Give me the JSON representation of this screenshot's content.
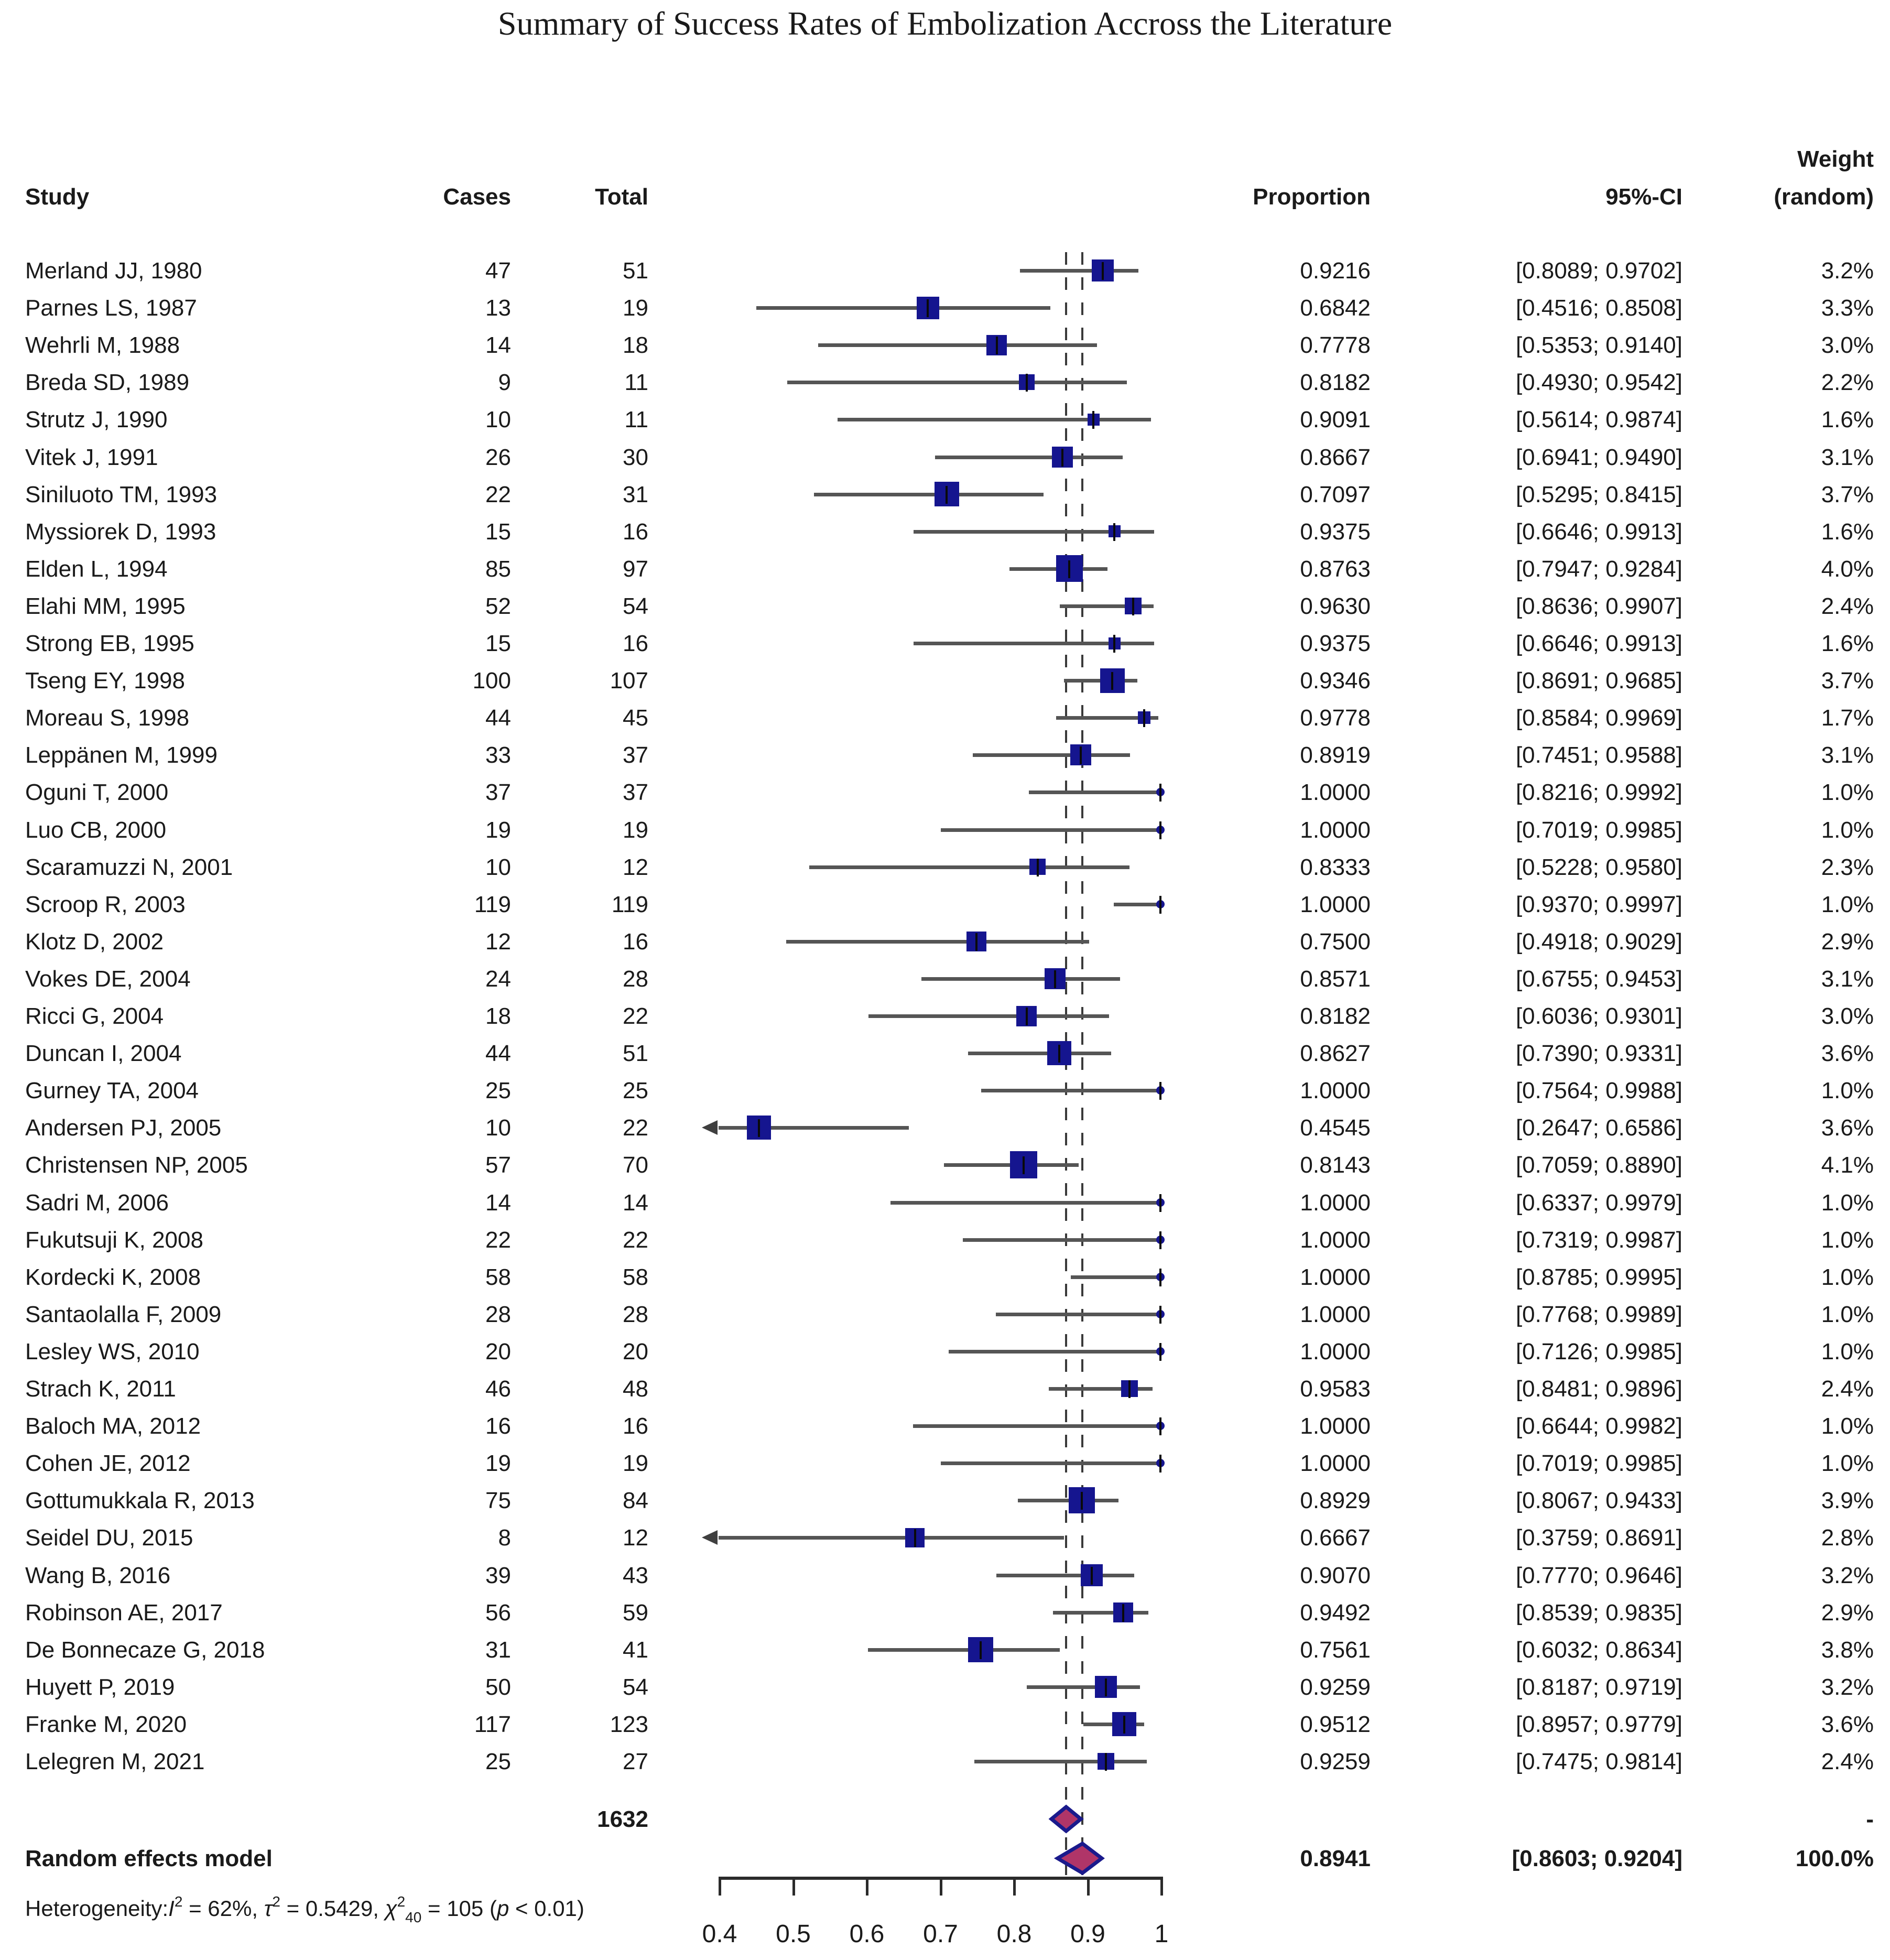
{
  "title": "Summary of Success Rates of Embolization Accross the Literature",
  "header": {
    "study": "Study",
    "cases": "Cases",
    "total": "Total",
    "proportion": "Proportion",
    "ci": "95%-CI",
    "weight_line1": "Weight",
    "weight_line2": "(random)"
  },
  "colors": {
    "square": "#15158f",
    "diamond_fill": "#b03568",
    "diamond_stroke": "#1a1a8c",
    "ci_line": "#555555",
    "dashed_line": "#3a3a3a",
    "axis": "#2b2b2b",
    "text": "#1a1a1a"
  },
  "chart_data": {
    "type": "forest",
    "xlim": [
      0.4,
      1.0
    ],
    "axis_ticks": [
      {
        "v": 0.4,
        "label": "0.4"
      },
      {
        "v": 0.5,
        "label": "0.5"
      },
      {
        "v": 0.6,
        "label": "0.6"
      },
      {
        "v": 0.7,
        "label": "0.7"
      },
      {
        "v": 0.8,
        "label": "0.8"
      },
      {
        "v": 0.9,
        "label": "0.9"
      },
      {
        "v": 1.0,
        "label": "1"
      }
    ],
    "dashed_lines": [
      0.872,
      0.8941
    ],
    "rows": [
      {
        "study": "Merland JJ, 1980",
        "cases": 47,
        "total": 51,
        "proportion": 0.9216,
        "ci_low": 0.8089,
        "ci_high": 0.9702,
        "weight": 3.2
      },
      {
        "study": "Parnes LS, 1987",
        "cases": 13,
        "total": 19,
        "proportion": 0.6842,
        "ci_low": 0.4516,
        "ci_high": 0.8508,
        "weight": 3.3
      },
      {
        "study": "Wehrli M, 1988",
        "cases": 14,
        "total": 18,
        "proportion": 0.7778,
        "ci_low": 0.5353,
        "ci_high": 0.914,
        "weight": 3.0
      },
      {
        "study": "Breda SD, 1989",
        "cases": 9,
        "total": 11,
        "proportion": 0.8182,
        "ci_low": 0.493,
        "ci_high": 0.9542,
        "weight": 2.2
      },
      {
        "study": "Strutz J, 1990",
        "cases": 10,
        "total": 11,
        "proportion": 0.9091,
        "ci_low": 0.5614,
        "ci_high": 0.9874,
        "weight": 1.6
      },
      {
        "study": "Vitek J, 1991",
        "cases": 26,
        "total": 30,
        "proportion": 0.8667,
        "ci_low": 0.6941,
        "ci_high": 0.949,
        "weight": 3.1
      },
      {
        "study": "Siniluoto TM, 1993",
        "cases": 22,
        "total": 31,
        "proportion": 0.7097,
        "ci_low": 0.5295,
        "ci_high": 0.8415,
        "weight": 3.7
      },
      {
        "study": "Myssiorek D, 1993",
        "cases": 15,
        "total": 16,
        "proportion": 0.9375,
        "ci_low": 0.6646,
        "ci_high": 0.9913,
        "weight": 1.6
      },
      {
        "study": "Elden L, 1994",
        "cases": 85,
        "total": 97,
        "proportion": 0.8763,
        "ci_low": 0.7947,
        "ci_high": 0.9284,
        "weight": 4.0
      },
      {
        "study": "Elahi MM, 1995",
        "cases": 52,
        "total": 54,
        "proportion": 0.963,
        "ci_low": 0.8636,
        "ci_high": 0.9907,
        "weight": 2.4
      },
      {
        "study": "Strong EB, 1995",
        "cases": 15,
        "total": 16,
        "proportion": 0.9375,
        "ci_low": 0.6646,
        "ci_high": 0.9913,
        "weight": 1.6
      },
      {
        "study": "Tseng EY, 1998",
        "cases": 100,
        "total": 107,
        "proportion": 0.9346,
        "ci_low": 0.8691,
        "ci_high": 0.9685,
        "weight": 3.7
      },
      {
        "study": "Moreau S, 1998",
        "cases": 44,
        "total": 45,
        "proportion": 0.9778,
        "ci_low": 0.8584,
        "ci_high": 0.9969,
        "weight": 1.7
      },
      {
        "study": "Leppänen M, 1999",
        "cases": 33,
        "total": 37,
        "proportion": 0.8919,
        "ci_low": 0.7451,
        "ci_high": 0.9588,
        "weight": 3.1
      },
      {
        "study": "Oguni T, 2000",
        "cases": 37,
        "total": 37,
        "proportion": 1.0,
        "ci_low": 0.8216,
        "ci_high": 0.9992,
        "weight": 1.0
      },
      {
        "study": "Luo CB, 2000",
        "cases": 19,
        "total": 19,
        "proportion": 1.0,
        "ci_low": 0.7019,
        "ci_high": 0.9985,
        "weight": 1.0
      },
      {
        "study": "Scaramuzzi N, 2001",
        "cases": 10,
        "total": 12,
        "proportion": 0.8333,
        "ci_low": 0.5228,
        "ci_high": 0.958,
        "weight": 2.3
      },
      {
        "study": "Scroop R, 2003",
        "cases": 119,
        "total": 119,
        "proportion": 1.0,
        "ci_low": 0.937,
        "ci_high": 0.9997,
        "weight": 1.0
      },
      {
        "study": "Klotz D, 2002",
        "cases": 12,
        "total": 16,
        "proportion": 0.75,
        "ci_low": 0.4918,
        "ci_high": 0.9029,
        "weight": 2.9
      },
      {
        "study": "Vokes DE, 2004",
        "cases": 24,
        "total": 28,
        "proportion": 0.8571,
        "ci_low": 0.6755,
        "ci_high": 0.9453,
        "weight": 3.1
      },
      {
        "study": "Ricci G, 2004",
        "cases": 18,
        "total": 22,
        "proportion": 0.8182,
        "ci_low": 0.6036,
        "ci_high": 0.9301,
        "weight": 3.0
      },
      {
        "study": "Duncan I, 2004",
        "cases": 44,
        "total": 51,
        "proportion": 0.8627,
        "ci_low": 0.739,
        "ci_high": 0.9331,
        "weight": 3.6
      },
      {
        "study": "Gurney TA, 2004",
        "cases": 25,
        "total": 25,
        "proportion": 1.0,
        "ci_low": 0.7564,
        "ci_high": 0.9988,
        "weight": 1.0
      },
      {
        "study": "Andersen PJ, 2005",
        "cases": 10,
        "total": 22,
        "proportion": 0.4545,
        "ci_low": 0.2647,
        "ci_high": 0.6586,
        "weight": 3.6
      },
      {
        "study": "Christensen NP, 2005",
        "cases": 57,
        "total": 70,
        "proportion": 0.8143,
        "ci_low": 0.7059,
        "ci_high": 0.889,
        "weight": 4.1
      },
      {
        "study": "Sadri M, 2006",
        "cases": 14,
        "total": 14,
        "proportion": 1.0,
        "ci_low": 0.6337,
        "ci_high": 0.9979,
        "weight": 1.0
      },
      {
        "study": "Fukutsuji K, 2008",
        "cases": 22,
        "total": 22,
        "proportion": 1.0,
        "ci_low": 0.7319,
        "ci_high": 0.9987,
        "weight": 1.0
      },
      {
        "study": "Kordecki K, 2008",
        "cases": 58,
        "total": 58,
        "proportion": 1.0,
        "ci_low": 0.8785,
        "ci_high": 0.9995,
        "weight": 1.0
      },
      {
        "study": "Santaolalla F, 2009",
        "cases": 28,
        "total": 28,
        "proportion": 1.0,
        "ci_low": 0.7768,
        "ci_high": 0.9989,
        "weight": 1.0
      },
      {
        "study": "Lesley WS, 2010",
        "cases": 20,
        "total": 20,
        "proportion": 1.0,
        "ci_low": 0.7126,
        "ci_high": 0.9985,
        "weight": 1.0
      },
      {
        "study": "Strach K, 2011",
        "cases": 46,
        "total": 48,
        "proportion": 0.9583,
        "ci_low": 0.8481,
        "ci_high": 0.9896,
        "weight": 2.4
      },
      {
        "study": "Baloch MA, 2012",
        "cases": 16,
        "total": 16,
        "proportion": 1.0,
        "ci_low": 0.6644,
        "ci_high": 0.9982,
        "weight": 1.0
      },
      {
        "study": "Cohen JE, 2012",
        "cases": 19,
        "total": 19,
        "proportion": 1.0,
        "ci_low": 0.7019,
        "ci_high": 0.9985,
        "weight": 1.0
      },
      {
        "study": "Gottumukkala R, 2013",
        "cases": 75,
        "total": 84,
        "proportion": 0.8929,
        "ci_low": 0.8067,
        "ci_high": 0.9433,
        "weight": 3.9
      },
      {
        "study": "Seidel DU, 2015",
        "cases": 8,
        "total": 12,
        "proportion": 0.6667,
        "ci_low": 0.3759,
        "ci_high": 0.8691,
        "weight": 2.8
      },
      {
        "study": "Wang B, 2016",
        "cases": 39,
        "total": 43,
        "proportion": 0.907,
        "ci_low": 0.777,
        "ci_high": 0.9646,
        "weight": 3.2
      },
      {
        "study": "Robinson AE, 2017",
        "cases": 56,
        "total": 59,
        "proportion": 0.9492,
        "ci_low": 0.8539,
        "ci_high": 0.9835,
        "weight": 2.9
      },
      {
        "study": "De Bonnecaze G, 2018",
        "cases": 31,
        "total": 41,
        "proportion": 0.7561,
        "ci_low": 0.6032,
        "ci_high": 0.8634,
        "weight": 3.8
      },
      {
        "study": "Huyett P, 2019",
        "cases": 50,
        "total": 54,
        "proportion": 0.9259,
        "ci_low": 0.8187,
        "ci_high": 0.9719,
        "weight": 3.2
      },
      {
        "study": "Franke M, 2020",
        "cases": 117,
        "total": 123,
        "proportion": 0.9512,
        "ci_low": 0.8957,
        "ci_high": 0.9779,
        "weight": 3.6
      },
      {
        "study": "Lelegren M, 2021",
        "cases": 25,
        "total": 27,
        "proportion": 0.9259,
        "ci_low": 0.7475,
        "ci_high": 0.9814,
        "weight": 2.4
      }
    ],
    "total_row": {
      "total": 1632,
      "weight_label": "-",
      "diamond": {
        "low": 0.852,
        "high": 0.892,
        "center": 0.872
      }
    },
    "summary_row": {
      "label": "Random effects model",
      "proportion": 0.8941,
      "ci_low": 0.8603,
      "ci_high": 0.9204,
      "weight_label": "100.0%"
    },
    "heterogeneity": {
      "segments": [
        {
          "t": "Heterogeneity:",
          "s": "n"
        },
        {
          "t": "I",
          "s": "i"
        },
        {
          "t": "2",
          "s": "sup"
        },
        {
          "t": " = 62%, ",
          "s": "n"
        },
        {
          "t": "τ",
          "s": "i"
        },
        {
          "t": "2",
          "s": "sup"
        },
        {
          "t": " = 0.5429, ",
          "s": "n"
        },
        {
          "t": "χ",
          "s": "i"
        },
        {
          "t": "2",
          "s": "sup"
        },
        {
          "t": "40",
          "s": "sub"
        },
        {
          "t": " = 105 (",
          "s": "n"
        },
        {
          "t": "p",
          "s": "i"
        },
        {
          "t": " < 0.01)",
          "s": "n"
        }
      ]
    }
  }
}
